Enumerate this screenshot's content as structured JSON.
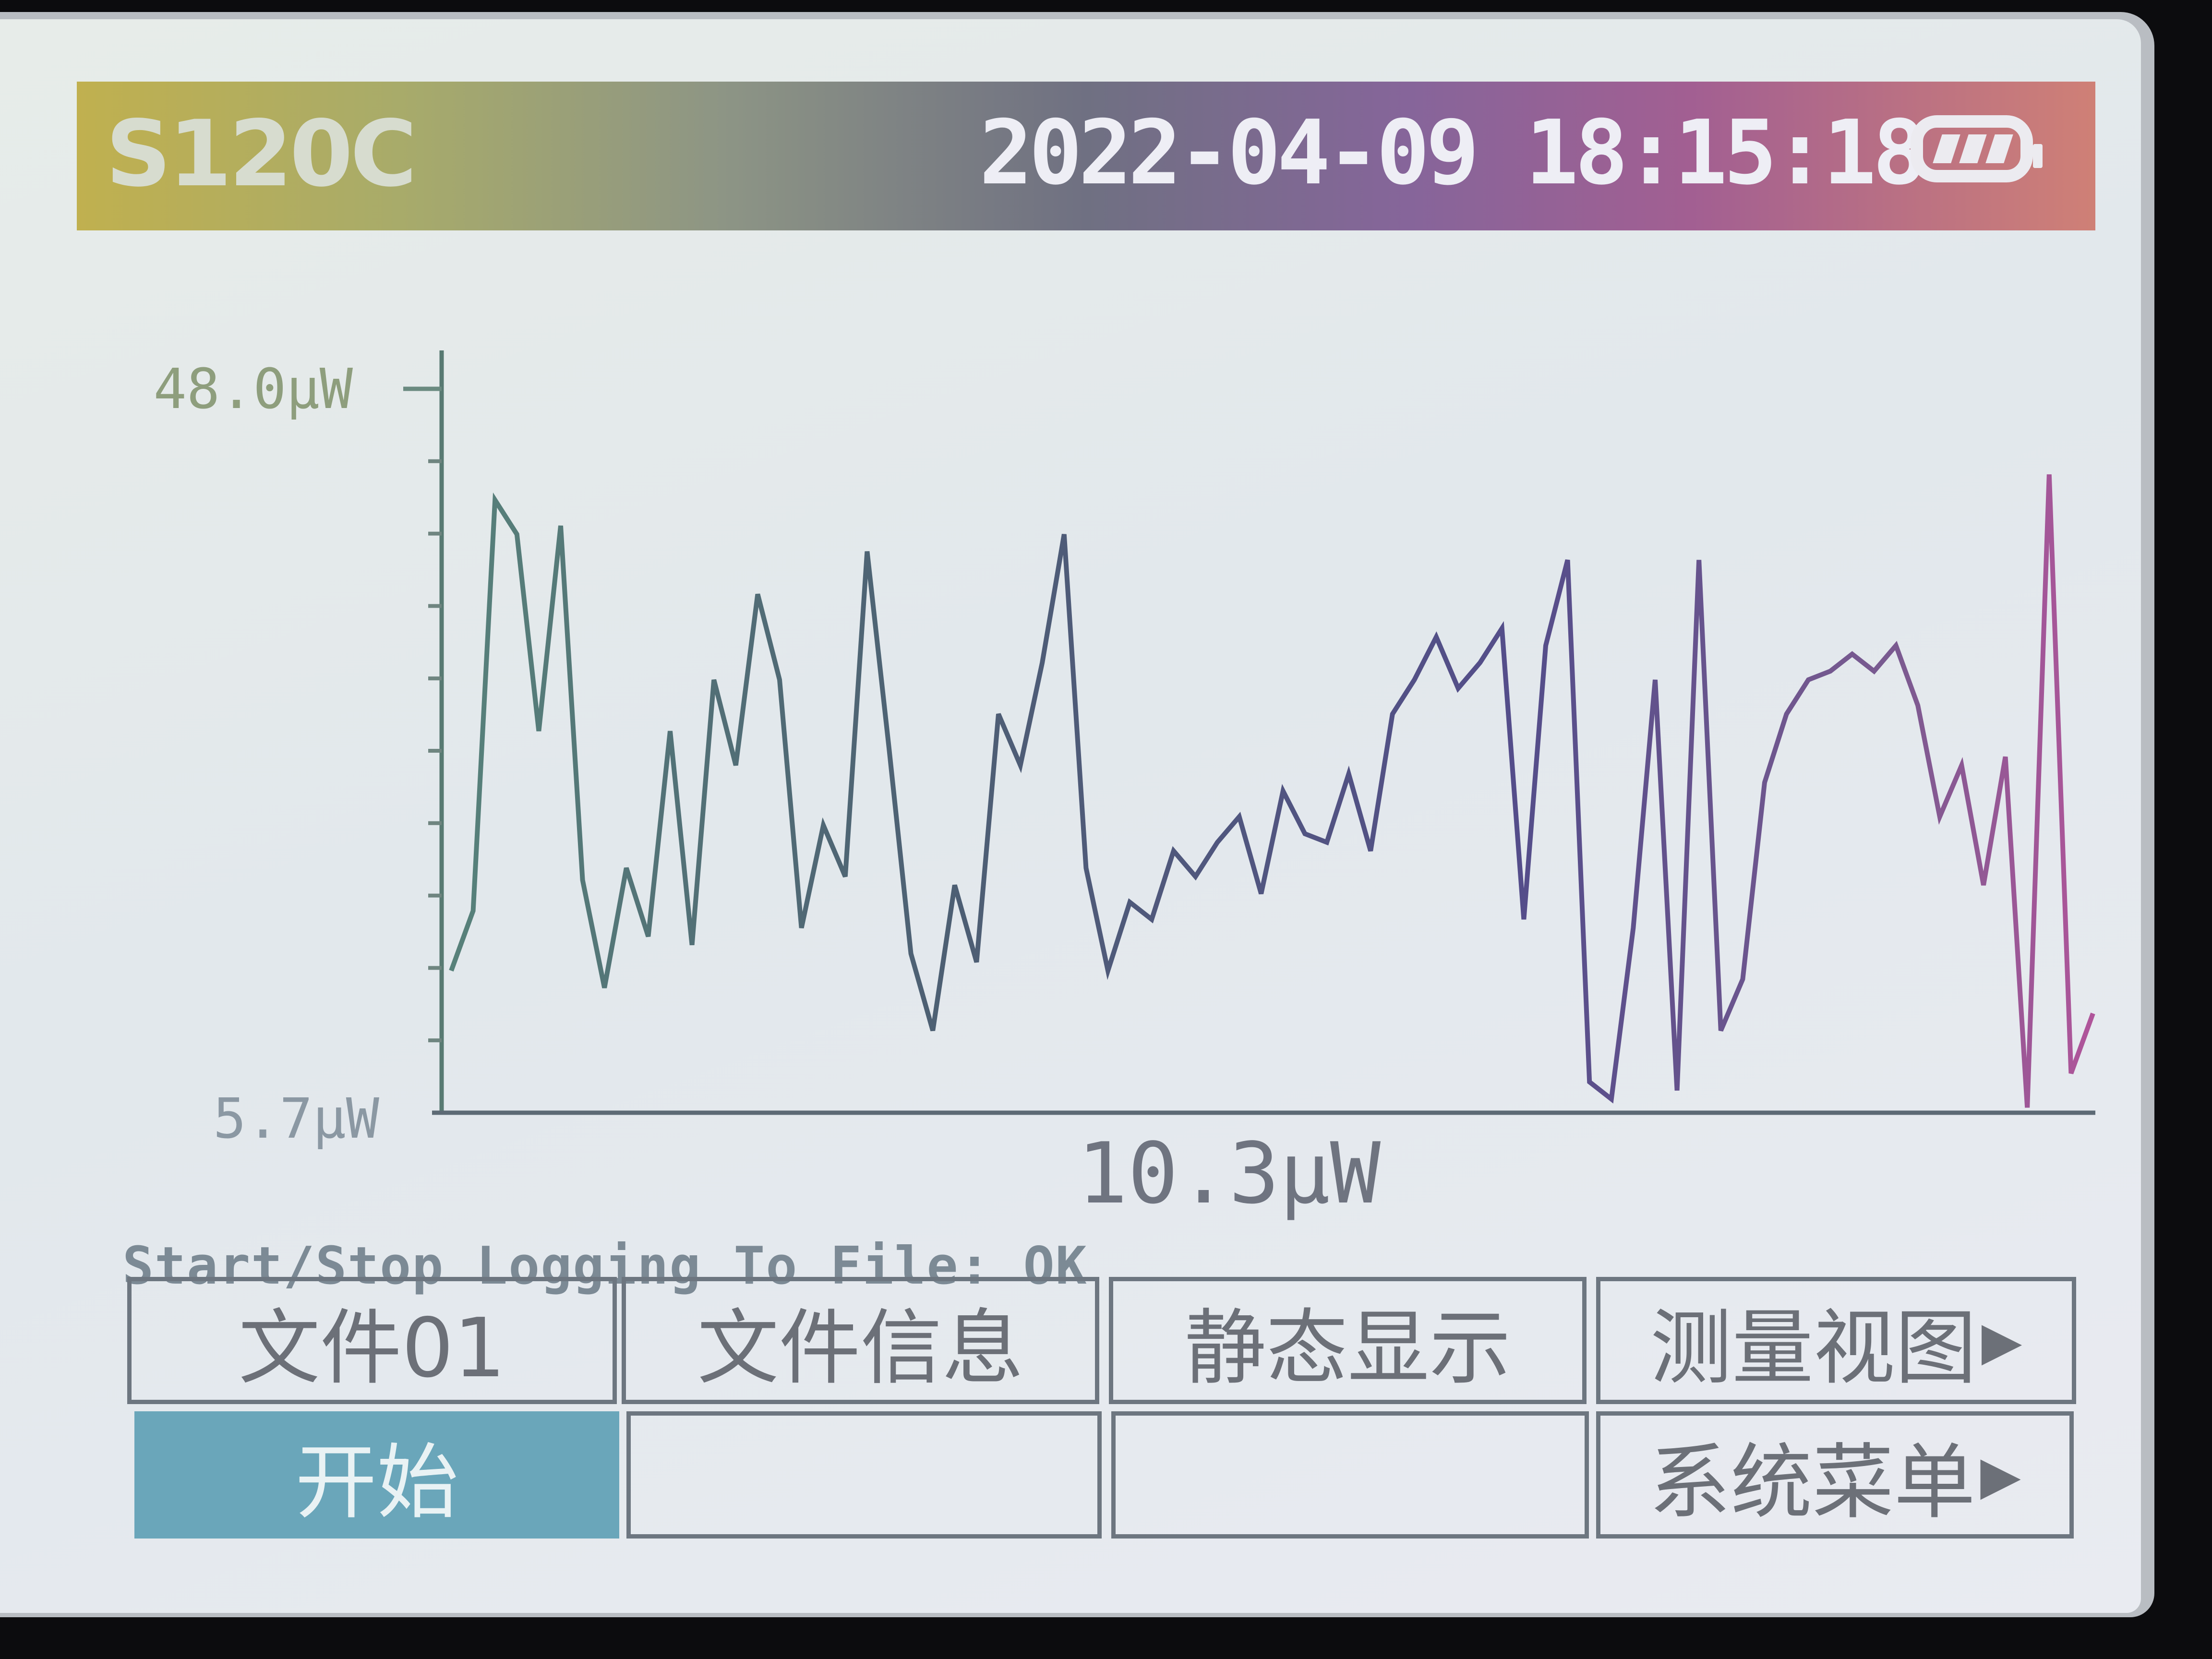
{
  "header": {
    "model": "S120C",
    "datetime": "2022-04-09 18:15:18",
    "battery_icon": "battery-icon"
  },
  "chart_data": {
    "type": "line",
    "ymax_label": "48.0μW",
    "ymin_label": "5.7μW",
    "current_label": "10.3μW",
    "ylim": [
      5.7,
      48.0
    ],
    "y_units": "μW",
    "grid": false,
    "series": [
      {
        "values": [
          14.0,
          17.5,
          41.5,
          39.5,
          28.0,
          40.0,
          19.3,
          13.0,
          20.0,
          16.0,
          28.0,
          15.5,
          31.0,
          26.0,
          36.0,
          31.0,
          16.5,
          22.5,
          19.5,
          38.5,
          27.0,
          15.0,
          10.5,
          19.0,
          14.5,
          29.0,
          26.0,
          32.0,
          39.5,
          20.0,
          14.0,
          18.0,
          17.0,
          21.0,
          19.5,
          21.5,
          23.0,
          18.5,
          24.5,
          22.0,
          21.5,
          25.5,
          21.0,
          29.0,
          31.0,
          33.5,
          30.5,
          32.0,
          34.0,
          17.0,
          33.0,
          38.0,
          7.5,
          6.5,
          16.5,
          31.0,
          7.0,
          38.0,
          10.5,
          13.5,
          25.0,
          29.0,
          31.0,
          31.5,
          32.5,
          31.5,
          33.0,
          29.5,
          23.0,
          26.0,
          19.0,
          26.5,
          6.0,
          43.0,
          8.0,
          11.5
        ]
      }
    ]
  },
  "status": {
    "message": "Start/Stop Logging To File: OK"
  },
  "softkeys": {
    "file": "文件01",
    "file_info": "文件信息",
    "static_display": "静态显示",
    "measure_view": "测量视图",
    "start": "开始",
    "system_menu": "系统菜单"
  }
}
